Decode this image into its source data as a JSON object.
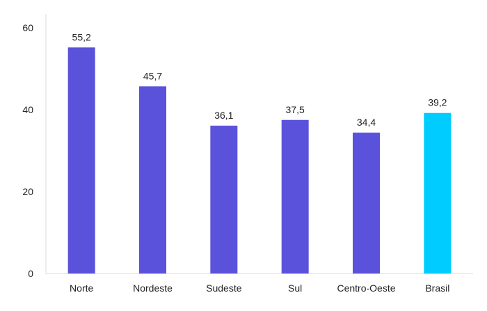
{
  "chart_data": {
    "type": "bar",
    "title": "",
    "xlabel": "",
    "ylabel": "",
    "categories": [
      "Norte",
      "Nordeste",
      "Sudeste",
      "Sul",
      "Centro-Oeste",
      "Brasil"
    ],
    "values": [
      55.2,
      45.7,
      36.1,
      37.5,
      34.4,
      39.2
    ],
    "value_labels": [
      "55,2",
      "45,7",
      "36,1",
      "37,5",
      "34,4",
      "39,2"
    ],
    "ylim": [
      0,
      60
    ],
    "yticks": [
      0,
      20,
      40,
      60
    ],
    "grid": false,
    "legend": "none",
    "colors": {
      "bar": "#5a52db",
      "highlight": "#00ccff",
      "highlight_category": "Brasil"
    }
  }
}
